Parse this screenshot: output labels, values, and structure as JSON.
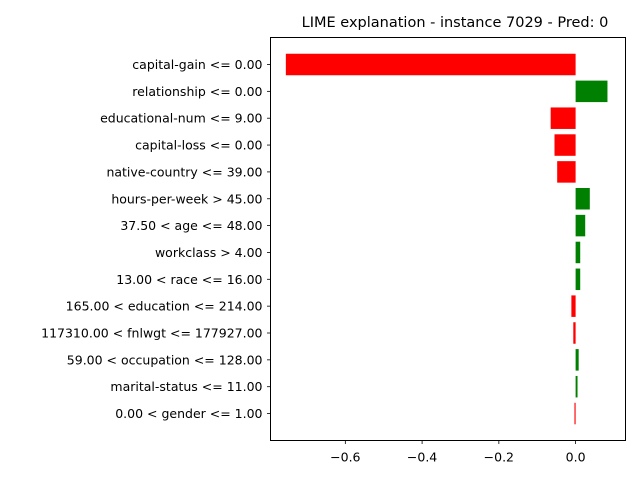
{
  "chart_data": {
    "type": "bar",
    "orientation": "horizontal",
    "title": "LIME explanation - instance 7029 - Pred: 0",
    "xlabel": "",
    "ylabel": "",
    "xlim": [
      -0.795,
      0.13
    ],
    "xticks": [
      -0.6,
      -0.4,
      -0.2,
      0.0
    ],
    "xtick_labels": [
      "−0.6",
      "−0.4",
      "−0.2",
      "0.0"
    ],
    "grid": false,
    "legend": "none",
    "colors": {
      "positive": "#008000",
      "negative": "#ff0000"
    },
    "categories": [
      "capital-gain <= 0.00",
      "relationship <= 0.00",
      "educational-num <= 9.00",
      "capital-loss <= 0.00",
      "native-country <= 39.00",
      "hours-per-week > 45.00",
      "37.50 < age <= 48.00",
      "workclass > 4.00",
      "13.00 < race <= 16.00",
      "165.00 < education <= 214.00",
      "117310.00 < fnlwgt <= 177927.00",
      "59.00 < occupation <= 128.00",
      "marital-status <= 11.00",
      "0.00 < gender <= 1.00"
    ],
    "values": [
      -0.755,
      0.083,
      -0.065,
      -0.055,
      -0.048,
      0.037,
      0.025,
      0.012,
      0.012,
      -0.011,
      -0.006,
      0.008,
      0.005,
      -0.003
    ]
  }
}
